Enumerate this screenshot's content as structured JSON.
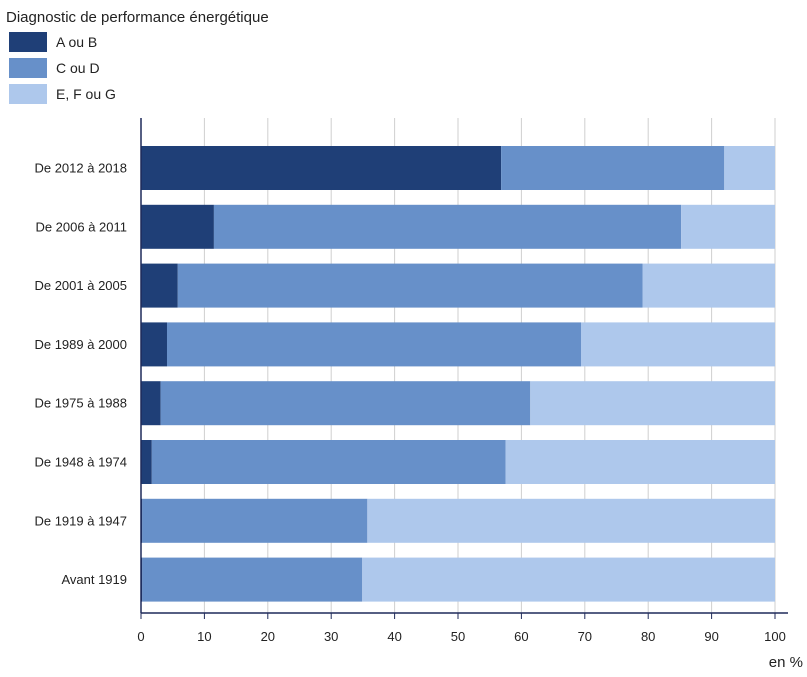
{
  "chart_data": {
    "type": "bar",
    "orientation": "horizontal",
    "stacked": true,
    "legend_title": "Diagnostic de performance énergétique",
    "legend_position": "top-left",
    "unit_label": "en %",
    "xlim": [
      0,
      100
    ],
    "xticks": [
      0,
      10,
      20,
      30,
      40,
      50,
      60,
      70,
      80,
      90,
      100
    ],
    "grid": true,
    "categories": [
      "De 2012 à 2018",
      "De 2006 à 2011",
      "De 2001 à 2005",
      "De 1989 à 2000",
      "De 1975 à 1988",
      "De 1948 à 1974",
      "De 1919 à 1947",
      "Avant 1919"
    ],
    "series": [
      {
        "name": "A ou B",
        "color": "#1f3f77",
        "values": [
          56.8,
          11.5,
          5.8,
          4.1,
          3.1,
          1.7,
          0.2,
          0.2
        ]
      },
      {
        "name": "C ou D",
        "color": "#6790c9",
        "values": [
          35.2,
          73.7,
          73.3,
          65.3,
          58.3,
          55.8,
          35.5,
          34.7
        ]
      },
      {
        "name": "E, F ou G",
        "color": "#aec8ec",
        "values": [
          8.0,
          14.8,
          20.9,
          30.6,
          38.6,
          42.5,
          64.3,
          65.1
        ]
      }
    ]
  }
}
